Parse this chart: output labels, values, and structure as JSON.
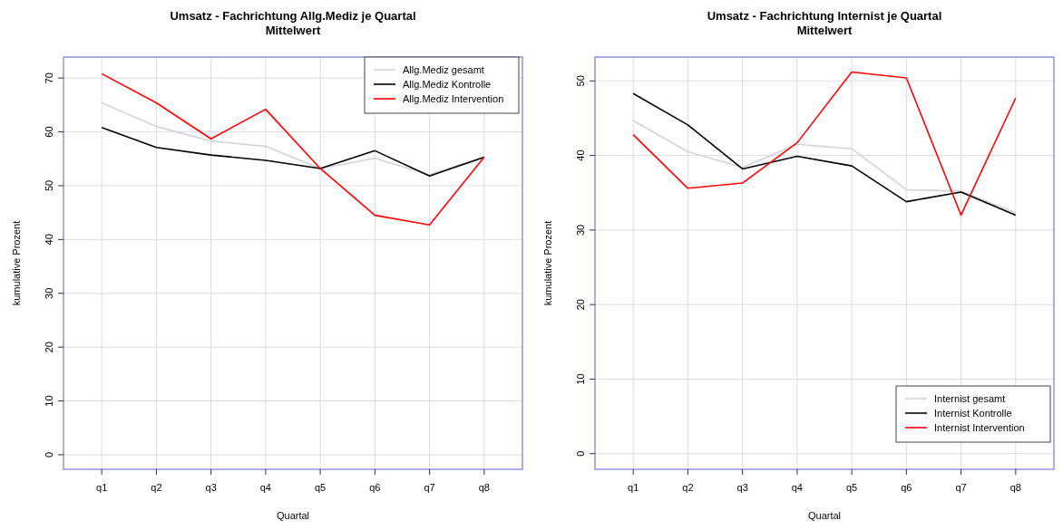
{
  "chart_data": [
    {
      "type": "line",
      "title": "Umsatz - Fachrichtung Allg.Mediz je Quartal",
      "subtitle": "Mittelwert",
      "xlabel": "Quartal",
      "ylabel": "kumulative Prozent",
      "categories": [
        "q1",
        "q2",
        "q3",
        "q4",
        "q5",
        "q6",
        "q7",
        "q8"
      ],
      "series": [
        {
          "name": "Allg.Mediz gesamt",
          "color": "#d3d3d3",
          "values": [
            65.4,
            61.0,
            58.3,
            57.3,
            53.2,
            55.1,
            52.0,
            55.3
          ]
        },
        {
          "name": "Allg.Mediz Kontrolle",
          "color": "#000000",
          "values": [
            60.8,
            57.1,
            55.7,
            54.7,
            53.2,
            56.5,
            51.8,
            55.3
          ]
        },
        {
          "name": "Allg.Mediz Intervention",
          "color": "#ff0000",
          "values": [
            70.8,
            65.4,
            58.7,
            64.2,
            53.2,
            44.5,
            42.7,
            55.3
          ]
        }
      ],
      "ylim": [
        -2.7,
        73.9
      ],
      "yticks": [
        0,
        10,
        20,
        30,
        40,
        50,
        60,
        70
      ],
      "grid": true,
      "legend": "top right"
    },
    {
      "type": "line",
      "title": "Umsatz - Fachrichtung Internist je Quartal",
      "subtitle": "Mittelwert",
      "xlabel": "Quartal",
      "ylabel": "kumulative Prozent",
      "categories": [
        "q1",
        "q2",
        "q3",
        "q4",
        "q5",
        "q6",
        "q7",
        "q8"
      ],
      "series": [
        {
          "name": "Internist gesamt",
          "color": "#d3d3d3",
          "values": [
            44.7,
            40.5,
            38.4,
            41.5,
            40.9,
            35.4,
            35.2,
            32.3
          ]
        },
        {
          "name": "Internist Kontrolle",
          "color": "#000000",
          "values": [
            48.3,
            44.1,
            38.2,
            39.9,
            38.6,
            33.8,
            35.1,
            32.0
          ]
        },
        {
          "name": "Internist Intervention",
          "color": "#ff0000",
          "values": [
            42.8,
            35.6,
            36.3,
            41.7,
            51.2,
            50.4,
            32.0,
            47.7
          ]
        }
      ],
      "ylim": [
        -2.1,
        53.2
      ],
      "yticks": [
        0,
        10,
        20,
        30,
        40,
        50
      ],
      "grid": true,
      "legend": "bottom right"
    }
  ]
}
